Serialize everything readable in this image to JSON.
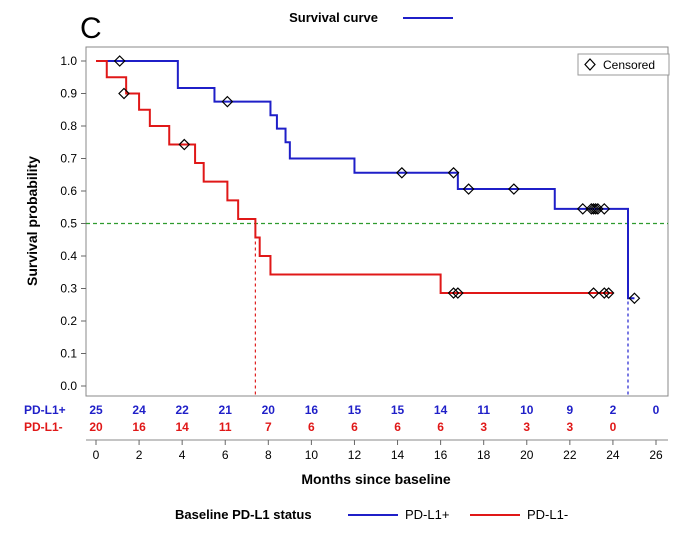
{
  "chart_data": {
    "type": "line",
    "panel_label": "C",
    "legend_top": {
      "title": "Survival curve"
    },
    "censored_label": "Censored",
    "xlabel": "Months since baseline",
    "ylabel": "Survival probability",
    "xlim": [
      0,
      26
    ],
    "ylim": [
      0,
      1.0
    ],
    "xticks": [
      0,
      2,
      4,
      6,
      8,
      10,
      12,
      14,
      16,
      18,
      20,
      22,
      24,
      26
    ],
    "yticks": [
      "0.0",
      "0.1",
      "0.2",
      "0.3",
      "0.4",
      "0.5",
      "0.6",
      "0.7",
      "0.8",
      "0.9",
      "1.0"
    ],
    "reference_line": {
      "y": 0.5,
      "color": "#2e9b2e"
    },
    "median_drops": [
      {
        "series": "PD-L1-",
        "x": 7.4,
        "color": "#e02020"
      },
      {
        "series": "PD-L1+",
        "x": 24.7,
        "color": "#2020d0"
      }
    ],
    "series": [
      {
        "name": "PD-L1+",
        "color": "#1f1fc8",
        "steps": [
          [
            0,
            1.0
          ],
          [
            3.8,
            0.917
          ],
          [
            5.5,
            0.875
          ],
          [
            8.1,
            0.833
          ],
          [
            8.4,
            0.792
          ],
          [
            8.8,
            0.75
          ],
          [
            9.0,
            0.7
          ],
          [
            12.0,
            0.656
          ],
          [
            16.8,
            0.606
          ],
          [
            21.3,
            0.545
          ],
          [
            24.7,
            0.27
          ],
          [
            25.0,
            0.27
          ]
        ],
        "censored": [
          [
            1.1,
            1.0
          ],
          [
            6.1,
            0.875
          ],
          [
            14.2,
            0.656
          ],
          [
            16.6,
            0.656
          ],
          [
            17.3,
            0.606
          ],
          [
            19.4,
            0.606
          ],
          [
            22.6,
            0.545
          ],
          [
            23.0,
            0.545
          ],
          [
            23.1,
            0.545
          ],
          [
            23.2,
            0.545
          ],
          [
            23.3,
            0.545
          ],
          [
            23.6,
            0.545
          ],
          [
            25.0,
            0.27
          ]
        ]
      },
      {
        "name": "PD-L1-",
        "color": "#e01818",
        "steps": [
          [
            0,
            1.0
          ],
          [
            0.5,
            0.95
          ],
          [
            1.4,
            0.9
          ],
          [
            2.0,
            0.85
          ],
          [
            2.5,
            0.8
          ],
          [
            3.4,
            0.743
          ],
          [
            4.6,
            0.686
          ],
          [
            5.0,
            0.629
          ],
          [
            6.1,
            0.571
          ],
          [
            6.6,
            0.514
          ],
          [
            7.4,
            0.457
          ],
          [
            7.6,
            0.4
          ],
          [
            8.1,
            0.343
          ],
          [
            16.0,
            0.286
          ],
          [
            24.0,
            0.286
          ]
        ],
        "censored": [
          [
            1.3,
            0.9
          ],
          [
            4.1,
            0.743
          ],
          [
            16.6,
            0.286
          ],
          [
            16.8,
            0.286
          ],
          [
            23.1,
            0.286
          ],
          [
            23.6,
            0.286
          ],
          [
            23.8,
            0.286
          ]
        ]
      }
    ],
    "at_risk": [
      {
        "label": "PD-L1+",
        "color": "#1f1fc8",
        "values": [
          "25",
          "24",
          "22",
          "21",
          "20",
          "16",
          "15",
          "15",
          "14",
          "11",
          "10",
          "9",
          "2",
          "0"
        ]
      },
      {
        "label": "PD-L1-",
        "color": "#e01818",
        "values": [
          "20",
          "16",
          "14",
          "11",
          "7",
          "6",
          "6",
          "6",
          "6",
          "3",
          "3",
          "3",
          "0"
        ]
      }
    ],
    "legend_bottom": {
      "title": "Baseline PD-L1 status",
      "items": [
        "PD-L1+",
        "PD-L1-"
      ]
    }
  }
}
